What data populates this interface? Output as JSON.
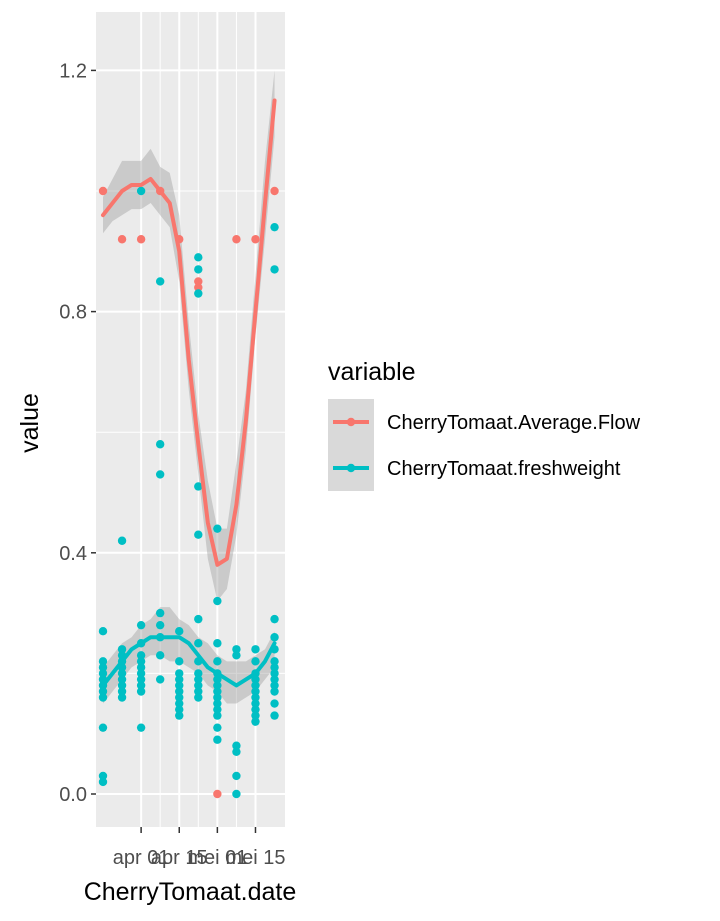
{
  "chart_data": {
    "type": "scatter",
    "title": "",
    "xlabel": "CherryTomaat.date",
    "ylabel": "value",
    "ylim": [
      -0.06,
      1.3
    ],
    "grid": true,
    "x_ticks": [
      {
        "label": "apr 01",
        "day": 4
      },
      {
        "label": "apr 15",
        "day": 8
      },
      {
        "label": "mei 01",
        "day": 12
      },
      {
        "label": "mei 15",
        "day": 16
      }
    ],
    "y_ticks": [
      0.0,
      0.4,
      0.8,
      1.2
    ],
    "y_tick_labels": [
      "0.0",
      "0.4",
      "0.8",
      "1.2"
    ],
    "legend": {
      "title": "variable",
      "placement": "right",
      "entries": [
        "CherryTomaat.Average.Flow",
        "CherryTomaat.freshweight"
      ]
    },
    "series": [
      {
        "name": "CherryTomaat.Average.Flow",
        "color": "#F8766D",
        "points": [
          [
            0,
            1.0
          ],
          [
            2,
            0.92
          ],
          [
            4,
            0.92
          ],
          [
            6,
            1.0
          ],
          [
            8,
            0.92
          ],
          [
            10,
            0.85
          ],
          [
            10,
            0.84
          ],
          [
            12,
            0.0
          ],
          [
            14,
            0.92
          ],
          [
            16,
            0.92
          ],
          [
            18,
            1.0
          ]
        ],
        "smooth": [
          [
            0,
            0.96
          ],
          [
            1,
            0.98
          ],
          [
            2,
            1.0
          ],
          [
            3,
            1.01
          ],
          [
            4,
            1.01
          ],
          [
            5,
            1.02
          ],
          [
            6,
            1.0
          ],
          [
            7,
            0.98
          ],
          [
            8,
            0.9
          ],
          [
            9,
            0.72
          ],
          [
            10,
            0.58
          ],
          [
            11,
            0.45
          ],
          [
            12,
            0.38
          ],
          [
            13,
            0.39
          ],
          [
            14,
            0.48
          ],
          [
            15,
            0.62
          ],
          [
            16,
            0.8
          ],
          [
            17,
            0.98
          ],
          [
            18,
            1.15
          ]
        ],
        "band_upper": [
          [
            0,
            0.99
          ],
          [
            1,
            1.02
          ],
          [
            2,
            1.05
          ],
          [
            3,
            1.05
          ],
          [
            4,
            1.05
          ],
          [
            5,
            1.07
          ],
          [
            6,
            1.04
          ],
          [
            7,
            1.03
          ],
          [
            8,
            0.96
          ],
          [
            9,
            0.78
          ],
          [
            10,
            0.63
          ],
          [
            11,
            0.52
          ],
          [
            12,
            0.44
          ],
          [
            13,
            0.44
          ],
          [
            14,
            0.55
          ],
          [
            15,
            0.67
          ],
          [
            16,
            0.86
          ],
          [
            17,
            1.05
          ],
          [
            18,
            1.2
          ]
        ],
        "band_lower": [
          [
            0,
            0.93
          ],
          [
            1,
            0.95
          ],
          [
            2,
            0.96
          ],
          [
            3,
            0.97
          ],
          [
            4,
            0.97
          ],
          [
            5,
            0.98
          ],
          [
            6,
            0.96
          ],
          [
            7,
            0.94
          ],
          [
            8,
            0.85
          ],
          [
            9,
            0.67
          ],
          [
            10,
            0.53
          ],
          [
            11,
            0.39
          ],
          [
            12,
            0.32
          ],
          [
            13,
            0.34
          ],
          [
            14,
            0.43
          ],
          [
            15,
            0.57
          ],
          [
            16,
            0.76
          ],
          [
            17,
            0.92
          ],
          [
            18,
            1.09
          ]
        ]
      },
      {
        "name": "CherryTomaat.freshweight",
        "color": "#00BFC4",
        "points": [
          [
            0,
            0.27
          ],
          [
            0,
            0.22
          ],
          [
            0,
            0.21
          ],
          [
            0,
            0.2
          ],
          [
            0,
            0.19
          ],
          [
            0,
            0.18
          ],
          [
            0,
            0.17
          ],
          [
            0,
            0.16
          ],
          [
            0,
            0.11
          ],
          [
            0,
            0.03
          ],
          [
            0,
            0.02
          ],
          [
            2,
            0.42
          ],
          [
            2,
            0.24
          ],
          [
            2,
            0.23
          ],
          [
            2,
            0.22
          ],
          [
            2,
            0.21
          ],
          [
            2,
            0.2
          ],
          [
            2,
            0.19
          ],
          [
            2,
            0.18
          ],
          [
            2,
            0.17
          ],
          [
            2,
            0.16
          ],
          [
            4,
            1.0
          ],
          [
            4,
            0.28
          ],
          [
            4,
            0.25
          ],
          [
            4,
            0.23
          ],
          [
            4,
            0.22
          ],
          [
            4,
            0.21
          ],
          [
            4,
            0.2
          ],
          [
            4,
            0.19
          ],
          [
            4,
            0.18
          ],
          [
            4,
            0.17
          ],
          [
            4,
            0.11
          ],
          [
            6,
            0.85
          ],
          [
            6,
            0.58
          ],
          [
            6,
            0.53
          ],
          [
            6,
            0.3
          ],
          [
            6,
            0.28
          ],
          [
            6,
            0.26
          ],
          [
            6,
            0.23
          ],
          [
            6,
            0.19
          ],
          [
            8,
            0.27
          ],
          [
            8,
            0.22
          ],
          [
            8,
            0.2
          ],
          [
            8,
            0.19
          ],
          [
            8,
            0.18
          ],
          [
            8,
            0.17
          ],
          [
            8,
            0.16
          ],
          [
            8,
            0.15
          ],
          [
            8,
            0.14
          ],
          [
            8,
            0.13
          ],
          [
            10,
            0.89
          ],
          [
            10,
            0.87
          ],
          [
            10,
            0.83
          ],
          [
            10,
            0.51
          ],
          [
            10,
            0.43
          ],
          [
            10,
            0.29
          ],
          [
            10,
            0.25
          ],
          [
            10,
            0.22
          ],
          [
            10,
            0.2
          ],
          [
            10,
            0.19
          ],
          [
            10,
            0.18
          ],
          [
            10,
            0.17
          ],
          [
            10,
            0.16
          ],
          [
            12,
            0.44
          ],
          [
            12,
            0.32
          ],
          [
            12,
            0.25
          ],
          [
            12,
            0.22
          ],
          [
            12,
            0.2
          ],
          [
            12,
            0.19
          ],
          [
            12,
            0.18
          ],
          [
            12,
            0.17
          ],
          [
            12,
            0.16
          ],
          [
            12,
            0.15
          ],
          [
            12,
            0.14
          ],
          [
            12,
            0.13
          ],
          [
            12,
            0.11
          ],
          [
            12,
            0.09
          ],
          [
            14,
            0.24
          ],
          [
            14,
            0.23
          ],
          [
            14,
            0.08
          ],
          [
            14,
            0.07
          ],
          [
            14,
            0.03
          ],
          [
            14,
            0.0
          ],
          [
            16,
            0.24
          ],
          [
            16,
            0.22
          ],
          [
            16,
            0.2
          ],
          [
            16,
            0.19
          ],
          [
            16,
            0.18
          ],
          [
            16,
            0.17
          ],
          [
            16,
            0.16
          ],
          [
            16,
            0.15
          ],
          [
            16,
            0.14
          ],
          [
            16,
            0.13
          ],
          [
            16,
            0.12
          ],
          [
            18,
            0.94
          ],
          [
            18,
            0.87
          ],
          [
            18,
            0.29
          ],
          [
            18,
            0.26
          ],
          [
            18,
            0.24
          ],
          [
            18,
            0.22
          ],
          [
            18,
            0.21
          ],
          [
            18,
            0.2
          ],
          [
            18,
            0.19
          ],
          [
            18,
            0.18
          ],
          [
            18,
            0.17
          ],
          [
            18,
            0.15
          ],
          [
            18,
            0.13
          ]
        ],
        "smooth": [
          [
            0,
            0.18
          ],
          [
            1,
            0.2
          ],
          [
            2,
            0.22
          ],
          [
            3,
            0.24
          ],
          [
            4,
            0.25
          ],
          [
            5,
            0.26
          ],
          [
            6,
            0.26
          ],
          [
            7,
            0.26
          ],
          [
            8,
            0.26
          ],
          [
            9,
            0.25
          ],
          [
            10,
            0.23
          ],
          [
            11,
            0.21
          ],
          [
            12,
            0.2
          ],
          [
            13,
            0.19
          ],
          [
            14,
            0.18
          ],
          [
            15,
            0.19
          ],
          [
            16,
            0.2
          ],
          [
            17,
            0.22
          ],
          [
            18,
            0.25
          ]
        ],
        "band_upper": [
          [
            0,
            0.21
          ],
          [
            1,
            0.23
          ],
          [
            2,
            0.25
          ],
          [
            3,
            0.26
          ],
          [
            4,
            0.28
          ],
          [
            5,
            0.29
          ],
          [
            6,
            0.31
          ],
          [
            7,
            0.31
          ],
          [
            8,
            0.29
          ],
          [
            9,
            0.28
          ],
          [
            10,
            0.26
          ],
          [
            11,
            0.25
          ],
          [
            12,
            0.23
          ],
          [
            13,
            0.22
          ],
          [
            14,
            0.22
          ],
          [
            15,
            0.22
          ],
          [
            16,
            0.23
          ],
          [
            17,
            0.24
          ],
          [
            18,
            0.27
          ]
        ],
        "band_lower": [
          [
            0,
            0.15
          ],
          [
            1,
            0.17
          ],
          [
            2,
            0.19
          ],
          [
            3,
            0.21
          ],
          [
            4,
            0.22
          ],
          [
            5,
            0.23
          ],
          [
            6,
            0.23
          ],
          [
            7,
            0.22
          ],
          [
            8,
            0.22
          ],
          [
            9,
            0.21
          ],
          [
            10,
            0.2
          ],
          [
            11,
            0.18
          ],
          [
            12,
            0.17
          ],
          [
            13,
            0.15
          ],
          [
            14,
            0.15
          ],
          [
            15,
            0.16
          ],
          [
            16,
            0.17
          ],
          [
            17,
            0.19
          ],
          [
            18,
            0.21
          ]
        ]
      }
    ]
  }
}
